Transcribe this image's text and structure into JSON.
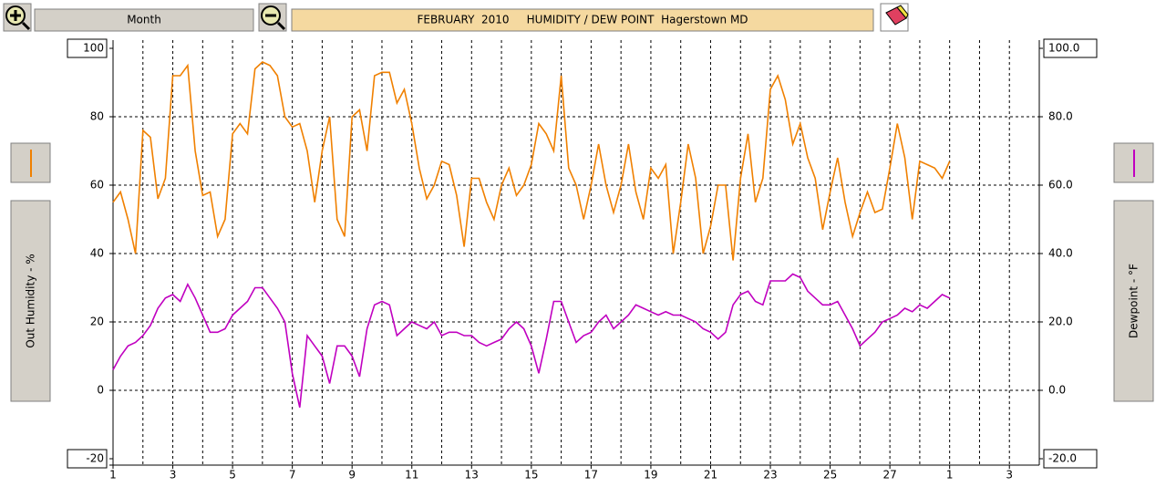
{
  "range_button": "Month",
  "chart_data": {
    "type": "line",
    "title": "FEBRUARY  2010     HUMIDITY / DEW POINT  Hagerstown MD",
    "x": [
      1,
      1.25,
      1.5,
      1.75,
      2,
      2.25,
      2.5,
      2.75,
      3,
      3.25,
      3.5,
      3.75,
      4,
      4.25,
      4.5,
      4.75,
      5,
      5.25,
      5.5,
      5.75,
      6,
      6.25,
      6.5,
      6.75,
      7,
      7.25,
      7.5,
      7.75,
      8,
      8.25,
      8.5,
      8.75,
      9,
      9.25,
      9.5,
      9.75,
      10,
      10.25,
      10.5,
      10.75,
      11,
      11.25,
      11.5,
      11.75,
      12,
      12.25,
      12.5,
      12.75,
      13,
      13.25,
      13.5,
      13.75,
      14,
      14.25,
      14.5,
      14.75,
      15,
      15.25,
      15.5,
      15.75,
      16,
      16.25,
      16.5,
      16.75,
      17,
      17.25,
      17.5,
      17.75,
      18,
      18.25,
      18.5,
      18.75,
      19,
      19.25,
      19.5,
      19.75,
      20,
      20.25,
      20.5,
      20.75,
      21,
      21.25,
      21.5,
      21.75,
      22,
      22.25,
      22.5,
      22.75,
      23,
      23.25,
      23.5,
      23.75,
      24,
      24.25,
      24.5,
      24.75,
      25,
      25.25,
      25.5,
      25.75,
      26,
      26.25,
      26.5,
      26.75,
      27,
      27.25,
      27.5,
      27.75,
      28,
      28.25,
      28.5,
      28.75,
      29
    ],
    "series": [
      {
        "name": "Out Humidity - %",
        "color": "#f08000",
        "values": [
          55,
          58,
          50,
          40,
          76,
          74,
          56,
          62,
          92,
          92,
          95,
          70,
          57,
          58,
          45,
          50,
          75,
          78,
          75,
          94,
          96,
          95,
          92,
          80,
          77,
          78,
          70,
          55,
          70,
          80,
          50,
          45,
          80,
          82,
          70,
          92,
          93,
          93,
          84,
          88,
          78,
          65,
          56,
          60,
          67,
          66,
          57,
          42,
          62,
          62,
          55,
          50,
          60,
          65,
          57,
          60,
          66,
          78,
          75,
          70,
          92,
          65,
          60,
          50,
          60,
          72,
          60,
          52,
          60,
          72,
          58,
          50,
          65,
          62,
          66,
          40,
          55,
          72,
          62,
          40,
          48,
          60,
          60,
          38,
          62,
          75,
          55,
          62,
          88,
          92,
          85,
          72,
          78,
          68,
          62,
          47,
          58,
          68,
          55,
          45,
          52,
          58,
          52,
          53,
          65,
          78,
          68,
          50,
          67,
          66,
          65,
          62,
          67
        ]
      },
      {
        "name": "Dewpoint - °F",
        "color": "#c000c0",
        "axis": "y2",
        "values": [
          6,
          10,
          13,
          14,
          16,
          19,
          24,
          27,
          28,
          26,
          31,
          27,
          22,
          17,
          17,
          18,
          22,
          24,
          26,
          30,
          30,
          27,
          24,
          20,
          5,
          -5,
          16,
          13,
          10,
          2,
          13,
          13,
          10,
          4,
          18,
          25,
          26,
          25,
          16,
          18,
          20,
          19,
          18,
          20,
          16,
          17,
          17,
          16,
          16,
          14,
          13,
          14,
          15,
          18,
          20,
          18,
          13,
          5,
          15,
          26,
          26,
          20,
          14,
          16,
          17,
          20,
          22,
          18,
          20,
          22,
          25,
          24,
          23,
          22,
          23,
          22,
          22,
          21,
          20,
          18,
          17,
          15,
          17,
          25,
          28,
          29,
          26,
          25,
          32,
          32,
          32,
          34,
          33,
          29,
          27,
          25,
          25,
          26,
          22,
          18,
          13,
          15,
          17,
          20,
          21,
          22,
          24,
          23,
          25,
          24,
          26,
          28,
          27
        ]
      }
    ],
    "xlim": [
      1,
      32
    ],
    "xticks": [
      1,
      3,
      5,
      7,
      9,
      11,
      13,
      15,
      17,
      19,
      21,
      23,
      25,
      27,
      {
        "value": 29,
        "label": "1"
      },
      {
        "value": 31,
        "label": "3"
      }
    ],
    "xminor": [
      2,
      4,
      6,
      8,
      10,
      12,
      14,
      16,
      18,
      20,
      22,
      24,
      26,
      28,
      30
    ],
    "ylim": [
      -20,
      100
    ],
    "yticks": [
      -20,
      0,
      20,
      40,
      60,
      80,
      100
    ],
    "y2lim": [
      -20,
      100
    ],
    "y2ticks": [
      {
        "value": -20,
        "label": "-20.0"
      },
      {
        "value": 0,
        "label": "0.0"
      },
      {
        "value": 20,
        "label": "20.0"
      },
      {
        "value": 40,
        "label": "40.0"
      },
      {
        "value": 60,
        "label": "60.0"
      },
      {
        "value": 80,
        "label": "80.0"
      },
      {
        "value": 100,
        "label": "100.0"
      }
    ],
    "grid": true
  }
}
